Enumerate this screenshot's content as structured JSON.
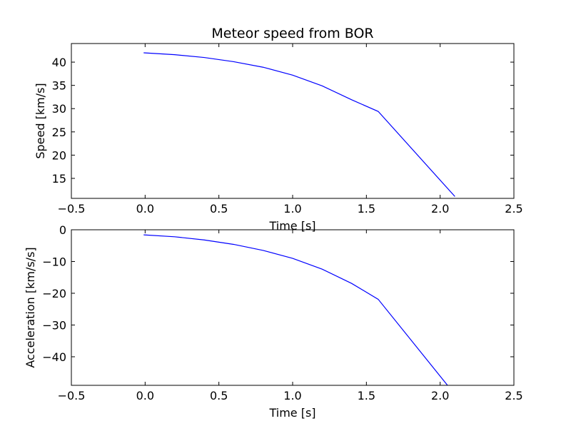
{
  "figure": {
    "title": "Meteor speed from  BOR"
  },
  "chart_data": [
    {
      "type": "line",
      "title": "Meteor speed from  BOR",
      "xlabel": "Time [s]",
      "ylabel": "Speed [km/s]",
      "xlim": [
        -0.5,
        2.5
      ],
      "ylim": [
        10.7,
        44.0
      ],
      "xticks": [
        -0.5,
        0.0,
        0.5,
        1.0,
        1.5,
        2.0,
        2.5
      ],
      "xtick_labels": [
        "−0.5",
        "0.0",
        "0.5",
        "1.0",
        "1.5",
        "2.0",
        "2.5"
      ],
      "yticks": [
        15,
        20,
        25,
        30,
        35,
        40
      ],
      "ytick_labels": [
        "15",
        "20",
        "25",
        "30",
        "35",
        "40"
      ],
      "grid": false,
      "series": [
        {
          "color": "#0000ff",
          "x": [
            -0.01,
            0.2,
            0.4,
            0.6,
            0.8,
            1.0,
            1.2,
            1.4,
            1.58,
            2.1
          ],
          "y": [
            42.0,
            41.6,
            41.0,
            40.1,
            38.9,
            37.2,
            34.9,
            31.9,
            29.4,
            11.1
          ]
        }
      ]
    },
    {
      "type": "line",
      "title": "",
      "xlabel": "Time [s]",
      "ylabel": "Acceleration [km/s/s]",
      "xlim": [
        -0.5,
        2.5
      ],
      "ylim": [
        -49.0,
        0.0
      ],
      "xticks": [
        -0.5,
        0.0,
        0.5,
        1.0,
        1.5,
        2.0,
        2.5
      ],
      "xtick_labels": [
        "−0.5",
        "0.0",
        "0.5",
        "1.0",
        "1.5",
        "2.0",
        "2.5"
      ],
      "yticks": [
        0,
        -10,
        -20,
        -30,
        -40
      ],
      "ytick_labels": [
        "0",
        "−10",
        "−20",
        "−30",
        "−40"
      ],
      "grid": false,
      "series": [
        {
          "color": "#0000ff",
          "x": [
            -0.01,
            0.2,
            0.4,
            0.6,
            0.8,
            1.0,
            1.2,
            1.4,
            1.58,
            2.05
          ],
          "y": [
            -1.6,
            -2.2,
            -3.2,
            -4.6,
            -6.5,
            -9.0,
            -12.4,
            -16.9,
            -21.9,
            -49.0
          ]
        }
      ]
    }
  ]
}
